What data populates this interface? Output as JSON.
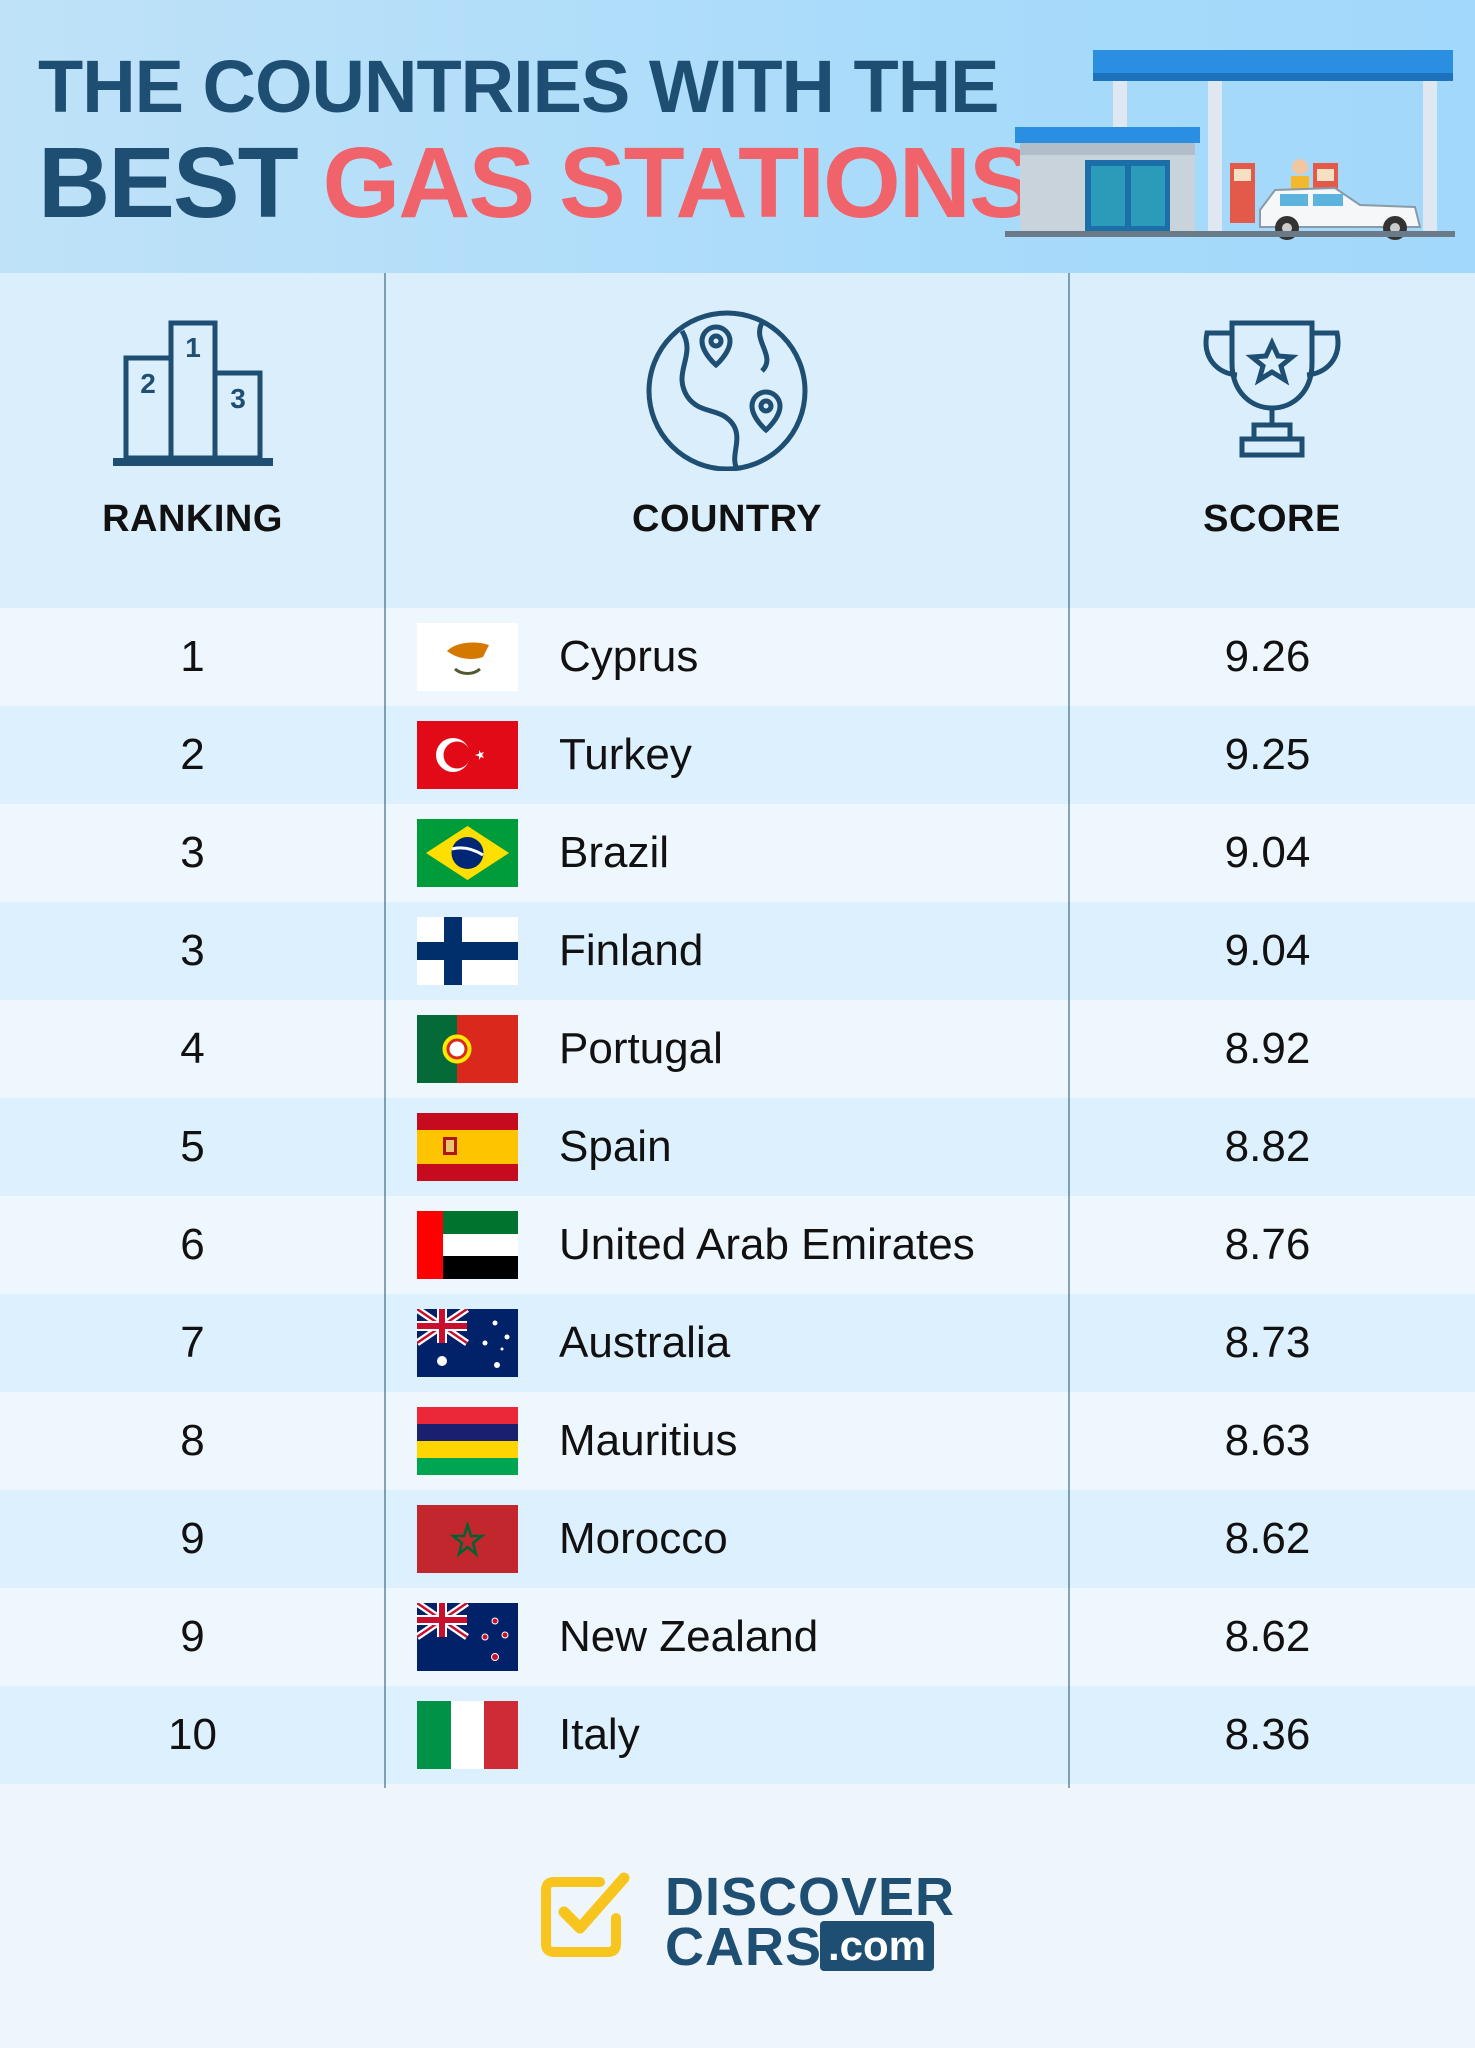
{
  "header": {
    "title_line1": "THE COUNTRIES WITH THE",
    "title_line2_a": "BEST",
    "title_line2_b": "GAS STATIONS",
    "colors": {
      "dark": "#1f4e73",
      "accent": "#f0636a",
      "background": "#b3ddf9"
    }
  },
  "table": {
    "columns": [
      {
        "label": "RANKING",
        "icon": "podium-icon"
      },
      {
        "label": "COUNTRY",
        "icon": "globe-pins-icon"
      },
      {
        "label": "SCORE",
        "icon": "trophy-icon"
      }
    ],
    "rows": [
      {
        "rank": "1",
        "country": "Cyprus",
        "score": "9.26",
        "flag": "cyprus-flag-icon"
      },
      {
        "rank": "2",
        "country": "Turkey",
        "score": "9.25",
        "flag": "turkey-flag-icon"
      },
      {
        "rank": "3",
        "country": "Brazil",
        "score": "9.04",
        "flag": "brazil-flag-icon"
      },
      {
        "rank": "3",
        "country": "Finland",
        "score": "9.04",
        "flag": "finland-flag-icon"
      },
      {
        "rank": "4",
        "country": "Portugal",
        "score": "8.92",
        "flag": "portugal-flag-icon"
      },
      {
        "rank": "5",
        "country": "Spain",
        "score": "8.82",
        "flag": "spain-flag-icon"
      },
      {
        "rank": "6",
        "country": "United Arab Emirates",
        "score": "8.76",
        "flag": "uae-flag-icon"
      },
      {
        "rank": "7",
        "country": "Australia",
        "score": "8.73",
        "flag": "australia-flag-icon"
      },
      {
        "rank": "8",
        "country": "Mauritius",
        "score": "8.63",
        "flag": "mauritius-flag-icon"
      },
      {
        "rank": "9",
        "country": "Morocco",
        "score": "8.62",
        "flag": "morocco-flag-icon"
      },
      {
        "rank": "9",
        "country": "New Zealand",
        "score": "8.62",
        "flag": "new-zealand-flag-icon"
      },
      {
        "rank": "10",
        "country": "Italy",
        "score": "8.36",
        "flag": "italy-flag-icon"
      }
    ]
  },
  "footer": {
    "logo_line1": "DISCOVER",
    "logo_line2": "CARS",
    "logo_suffix": ".com",
    "logo_colors": {
      "text": "#1f4e73",
      "check": "#f7c51e"
    }
  }
}
